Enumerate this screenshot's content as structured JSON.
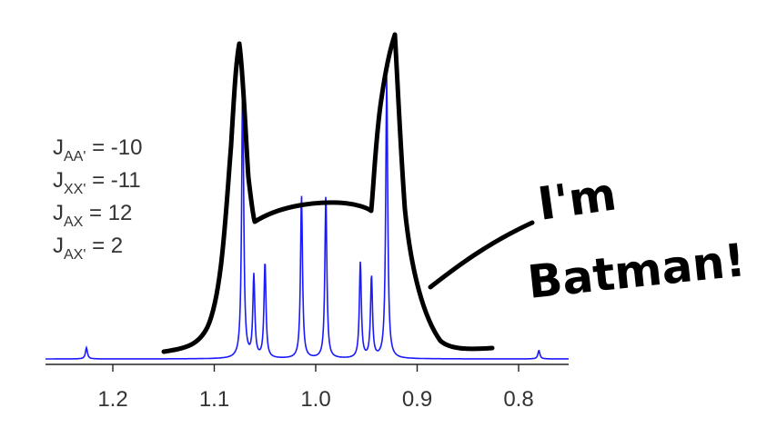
{
  "chart_data": {
    "type": "line",
    "title": "",
    "xlabel": "",
    "ylabel": "",
    "xlim": [
      1.25,
      0.75
    ],
    "x_reversed": true,
    "grid": false,
    "x_ticks": [
      1.2,
      1.1,
      1.0,
      0.9,
      0.8
    ],
    "x_tick_labels": [
      "1.2",
      "1.1",
      "1.0",
      "0.9",
      "0.8"
    ],
    "series_color": "#1a1aff",
    "peaks": [
      {
        "x": 1.226,
        "height": 0.04
      },
      {
        "x": 1.072,
        "height": 1.0
      },
      {
        "x": 1.061,
        "height": 0.29
      },
      {
        "x": 1.05,
        "height": 0.34
      },
      {
        "x": 1.014,
        "height": 0.58
      },
      {
        "x": 0.99,
        "height": 0.58
      },
      {
        "x": 0.956,
        "height": 0.34
      },
      {
        "x": 0.945,
        "height": 0.29
      },
      {
        "x": 0.93,
        "height": 1.0
      },
      {
        "x": 0.78,
        "height": 0.03
      }
    ],
    "annotations": [
      {
        "label": "J",
        "sub": "AA'",
        "value": " = -10"
      },
      {
        "label": "J",
        "sub": "XX'",
        "value": " = -11"
      },
      {
        "label": "J",
        "sub": "AX",
        "value": " = 12"
      },
      {
        "label": "J",
        "sub": "AX'",
        "value": " = 2"
      }
    ]
  },
  "doodle": {
    "line1": "I'm",
    "line2": "Batman!",
    "ink_color": "#000000"
  }
}
